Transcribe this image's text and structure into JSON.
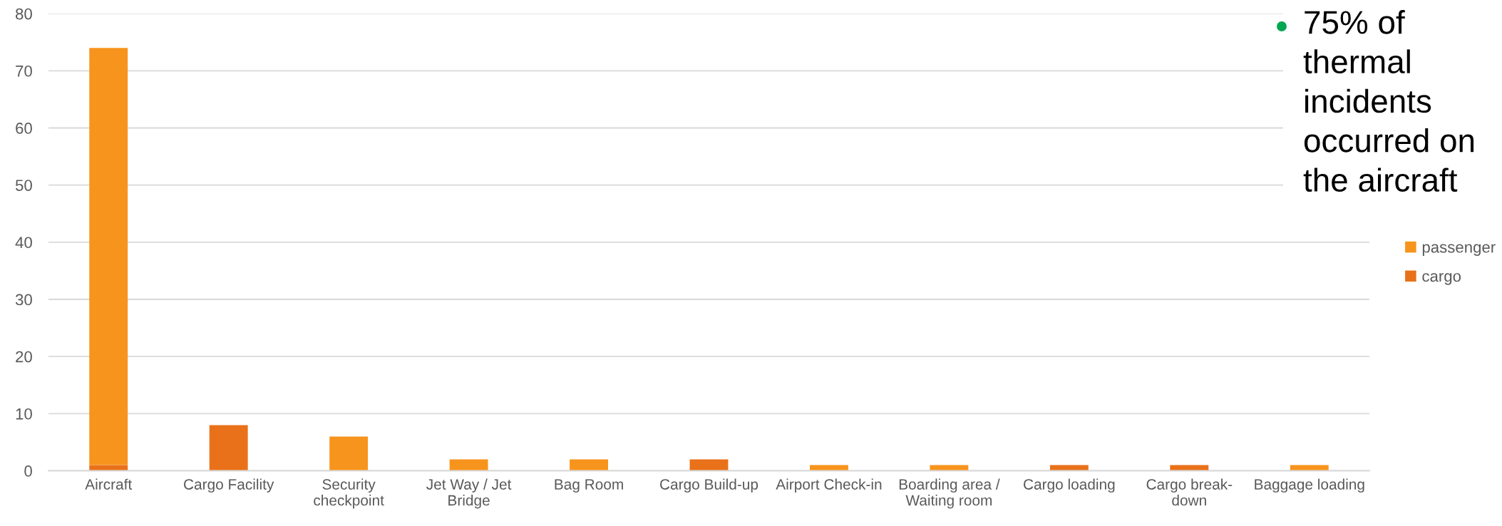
{
  "chart_data": {
    "type": "bar",
    "categories": [
      "Aircraft",
      "Cargo Facility",
      "Security checkpoint",
      "Jet Way / Jet Bridge",
      "Bag Room",
      "Cargo Build-up",
      "Airport Check-in",
      "Boarding area / Waiting room",
      "Cargo loading",
      "Cargo break-down",
      "Baggage loading"
    ],
    "series": [
      {
        "name": "cargo",
        "color": "#e9711a",
        "values": [
          1,
          8,
          null,
          null,
          null,
          2,
          null,
          null,
          1,
          1,
          null
        ]
      },
      {
        "name": "passenger",
        "color": "#f7941d",
        "values": [
          73,
          null,
          6,
          2,
          2,
          null,
          1,
          1,
          null,
          null,
          1
        ]
      }
    ],
    "stacked": true,
    "ylim": [
      0,
      80
    ],
    "yticks": [
      0,
      10,
      20,
      30,
      40,
      50,
      60,
      70,
      80
    ],
    "grid": "y",
    "legend": "right",
    "annotations": [
      "75% of thermal incidents occurred on the aircraft"
    ]
  }
}
